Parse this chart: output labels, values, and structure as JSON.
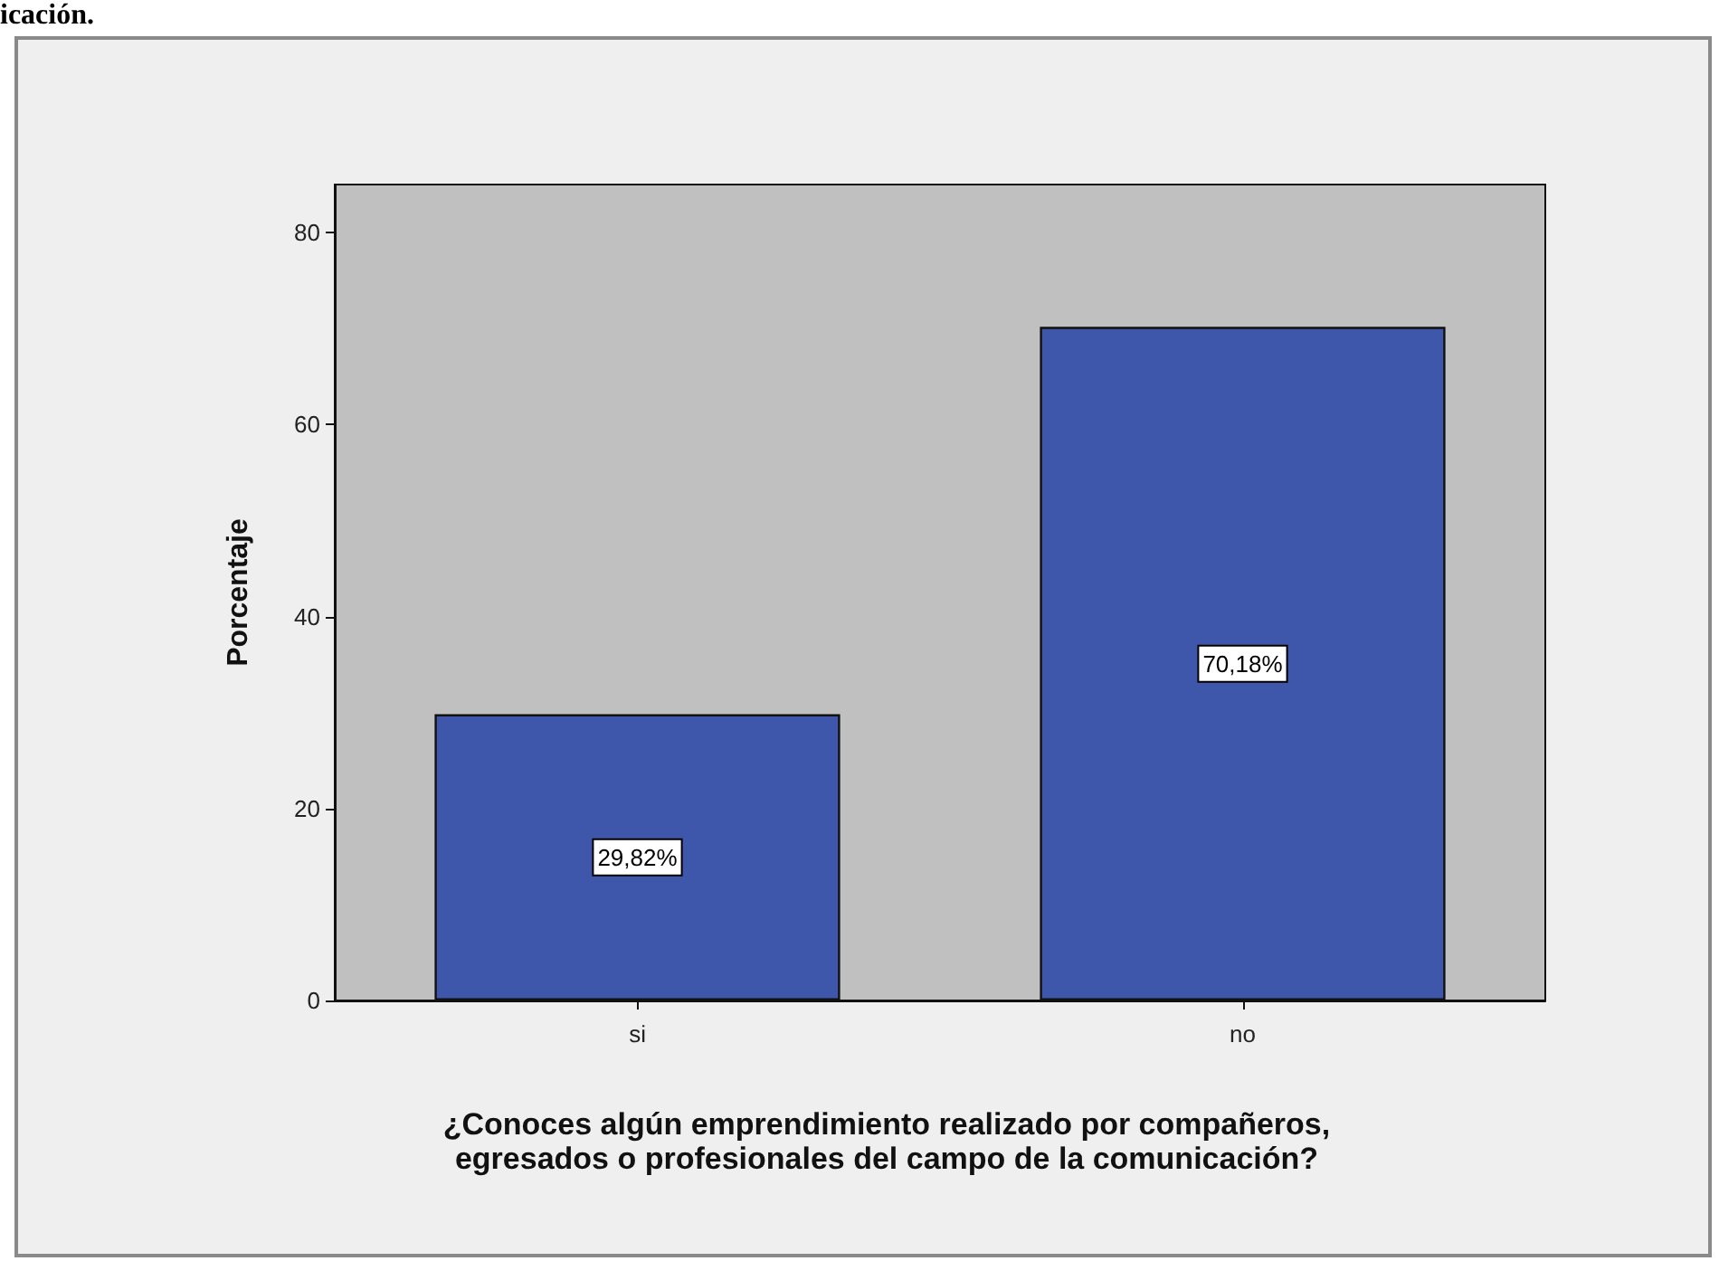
{
  "chart_data": {
    "type": "bar",
    "title": "icación.",
    "xlabel": "¿Conoces algún emprendimiento realizado por compañeros, egresados o profesionales del campo de la comunicación?",
    "ylabel": "Porcentaje",
    "categories": [
      "si",
      "no"
    ],
    "values": [
      29.82,
      70.18
    ],
    "value_labels": [
      "29,82%",
      "70,18%"
    ],
    "color": "#3f57aa",
    "ylim": [
      0,
      85
    ],
    "yticks": [
      0,
      20,
      40,
      60,
      80
    ],
    "grid": false
  }
}
